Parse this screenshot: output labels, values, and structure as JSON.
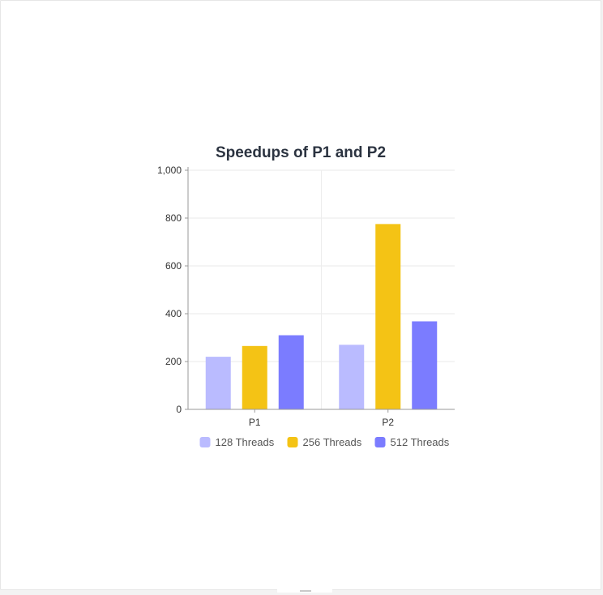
{
  "chart_data": {
    "type": "bar",
    "title": "Speedups of P1 and P2",
    "xlabel": "",
    "ylabel": "",
    "categories": [
      "P1",
      "P2"
    ],
    "series": [
      {
        "name": "128 Threads",
        "values": [
          220,
          270
        ],
        "color": "#babbff"
      },
      {
        "name": "256 Threads",
        "values": [
          265,
          775
        ],
        "color": "#f4c315"
      },
      {
        "name": "512 Threads",
        "values": [
          310,
          368
        ],
        "color": "#7b7cff"
      }
    ],
    "ylim": [
      0,
      1000
    ],
    "yticks": [
      "0",
      "200",
      "400",
      "600",
      "800",
      "1,000"
    ],
    "grid": true,
    "legend_position": "bottom"
  }
}
